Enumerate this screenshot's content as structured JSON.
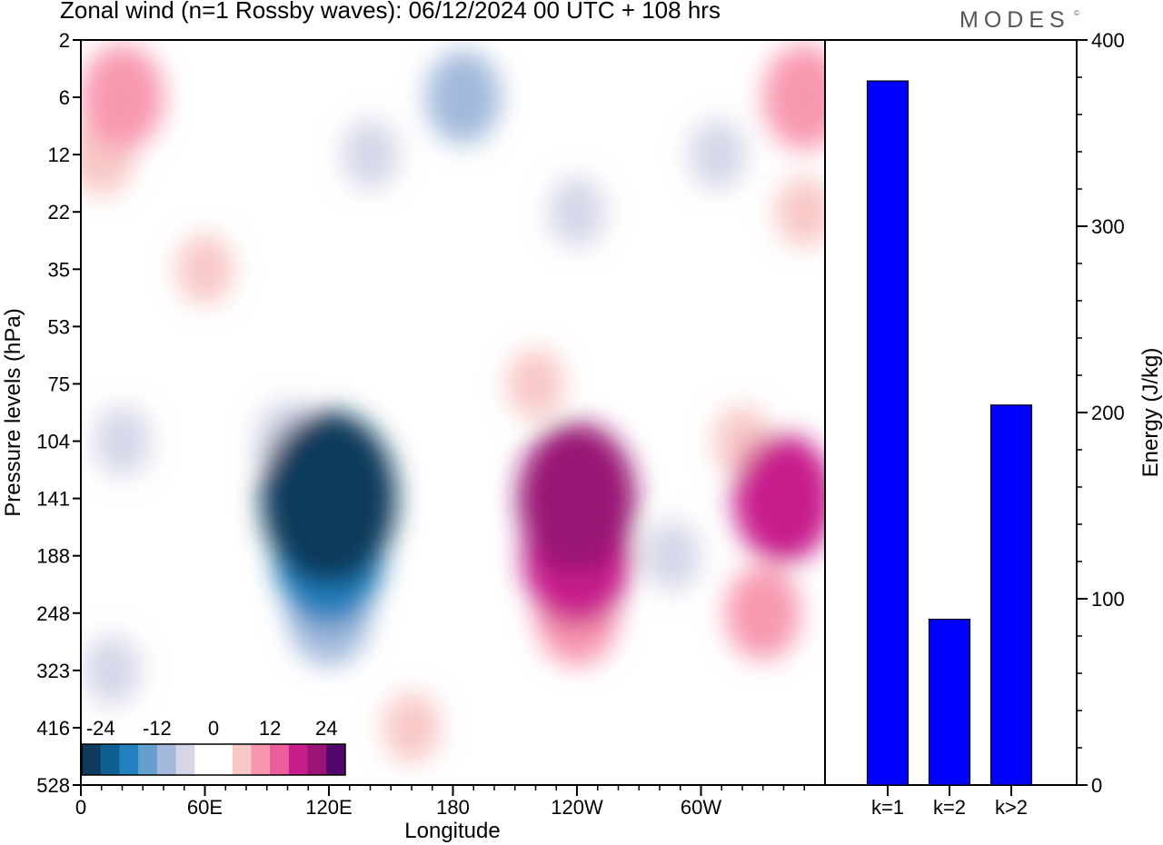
{
  "header": {
    "title": "Zonal wind (n=1 Rossby waves):  06/12/2024  00 UTC  + 108 hrs",
    "brand": "MODES",
    "brand_mark": "©"
  },
  "chart_data": [
    {
      "type": "heatmap",
      "title": "Zonal wind (n=1 Rossby waves):  06/12/2024  00 UTC  + 108 hrs",
      "xlabel": "Longitude",
      "ylabel": "Pressure levels (hPa)",
      "x_ticks": [
        "0",
        "60E",
        "120E",
        "180",
        "120W",
        "60W"
      ],
      "x_tick_values": [
        0,
        60,
        120,
        180,
        240,
        300
      ],
      "xlim": [
        0,
        360
      ],
      "y_ticks": [
        "2",
        "6",
        "12",
        "22",
        "35",
        "53",
        "75",
        "104",
        "141",
        "188",
        "248",
        "323",
        "416",
        "528"
      ],
      "y_scale": "pressure levels (top = 2 hPa, bottom = 528 hPa)",
      "colorbar": {
        "labels": [
          "-24",
          "-12",
          "0",
          "12",
          "24"
        ],
        "label_values": [
          -24,
          -12,
          0,
          12,
          24
        ],
        "colors": [
          "#0e3b5c",
          "#0f5f93",
          "#2380be",
          "#64a0cb",
          "#a2b9db",
          "#d5d7e8",
          "#ffffff",
          "#ffffff",
          "#f8c8c6",
          "#f898b0",
          "#ec5d9e",
          "#c81d8c",
          "#991475",
          "#53056c"
        ],
        "placement": "bottom-left"
      },
      "cells": [
        {
          "lon": 20,
          "level": "6",
          "value": 10
        },
        {
          "lon": 10,
          "level": "12",
          "value": 6
        },
        {
          "lon": 60,
          "level": "35",
          "value": 4
        },
        {
          "lon": 185,
          "level": "6",
          "value": -8
        },
        {
          "lon": 140,
          "level": "12",
          "value": -4
        },
        {
          "lon": 240,
          "level": "22",
          "value": -4
        },
        {
          "lon": 308,
          "level": "12",
          "value": -4
        },
        {
          "lon": 350,
          "level": "6",
          "value": 10
        },
        {
          "lon": 350,
          "level": "22",
          "value": 4
        },
        {
          "lon": 20,
          "level": "104",
          "value": -4
        },
        {
          "lon": 120,
          "level": "141",
          "value": -22
        },
        {
          "lon": 120,
          "level": "188",
          "value": -16
        },
        {
          "lon": 120,
          "level": "248",
          "value": -10
        },
        {
          "lon": 100,
          "level": "104",
          "value": -6
        },
        {
          "lon": 240,
          "level": "141",
          "value": 18
        },
        {
          "lon": 240,
          "level": "188",
          "value": 16
        },
        {
          "lon": 240,
          "level": "248",
          "value": 10
        },
        {
          "lon": 220,
          "level": "75",
          "value": 4
        },
        {
          "lon": 286,
          "level": "188",
          "value": -4
        },
        {
          "lon": 340,
          "level": "141",
          "value": 14
        },
        {
          "lon": 330,
          "level": "248",
          "value": 8
        },
        {
          "lon": 320,
          "level": "104",
          "value": 4
        },
        {
          "lon": 15,
          "level": "323",
          "value": -4
        },
        {
          "lon": 160,
          "level": "416",
          "value": 4
        }
      ]
    },
    {
      "type": "bar",
      "categories": [
        "k=1",
        "k=2",
        "k>2"
      ],
      "values": [
        378,
        89,
        204
      ],
      "ylabel": "Energy (J/kg)",
      "ylim": [
        0,
        400
      ],
      "y_ticks": [
        "0",
        "100",
        "200",
        "300",
        "400"
      ],
      "bar_color": "#0000ff"
    }
  ]
}
